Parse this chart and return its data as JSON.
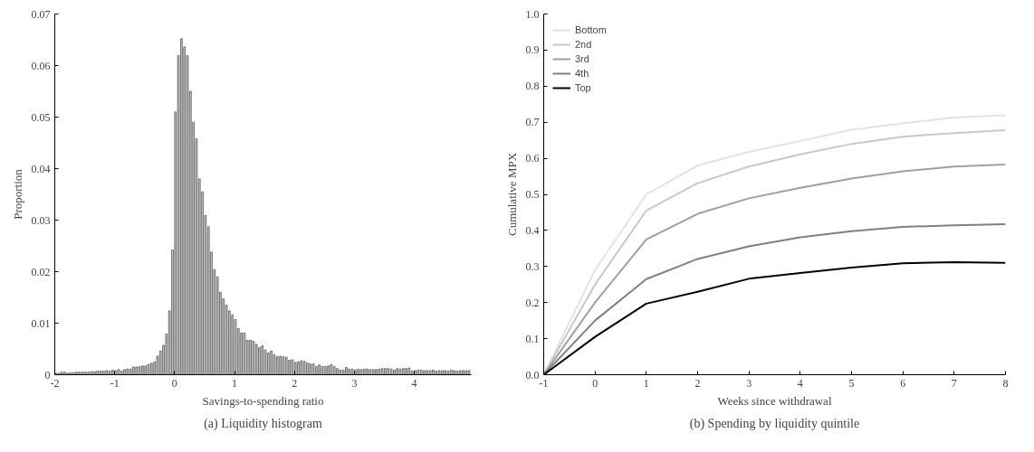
{
  "chart_data": [
    {
      "type": "histogram",
      "title": "(a) Liquidity histogram",
      "xlabel": "Savings-to-spending ratio",
      "ylabel": "Proportion",
      "color": "#555555",
      "grid": false,
      "xlim": [
        -2,
        4.95
      ],
      "xticks": [
        -2,
        -1,
        0,
        1,
        2,
        3,
        4
      ],
      "ylim": [
        0,
        0.07
      ],
      "yticks": [
        0,
        0.01,
        0.02,
        0.03,
        0.04,
        0.05,
        0.06,
        0.07
      ],
      "bins": [
        -2,
        -1.95,
        -1.9,
        -1.85,
        -1.8,
        -1.75,
        -1.7,
        -1.65,
        -1.6,
        -1.55,
        -1.5,
        -1.45,
        -1.4,
        -1.35,
        -1.3,
        -1.25,
        -1.2,
        -1.15,
        -1.1,
        -1.05,
        -1,
        -0.95,
        -0.9,
        -0.85,
        -0.8,
        -0.75,
        -0.7,
        -0.65,
        -0.6,
        -0.55,
        -0.5,
        -0.45,
        -0.4,
        -0.35,
        -0.3,
        -0.25,
        -0.2,
        -0.15,
        -0.1,
        -0.05,
        0,
        0.05,
        0.1,
        0.15,
        0.2,
        0.25,
        0.3,
        0.35,
        0.4,
        0.45,
        0.5,
        0.55,
        0.6,
        0.65,
        0.7,
        0.75,
        0.8,
        0.85,
        0.9,
        0.95,
        1,
        1.05,
        1.1,
        1.15,
        1.2,
        1.25,
        1.3,
        1.35,
        1.4,
        1.45,
        1.5,
        1.55,
        1.6,
        1.65,
        1.7,
        1.75,
        1.8,
        1.85,
        1.9,
        1.95,
        2,
        2.05,
        2.1,
        2.15,
        2.2,
        2.25,
        2.3,
        2.35,
        2.4,
        2.45,
        2.5,
        2.55,
        2.6,
        2.65,
        2.7,
        2.75,
        2.8,
        2.85,
        2.9,
        2.95,
        3,
        3.05,
        3.1,
        3.15,
        3.2,
        3.25,
        3.3,
        3.35,
        3.4,
        3.45,
        3.5,
        3.55,
        3.6,
        3.65,
        3.7,
        3.75,
        3.8,
        3.85,
        3.9,
        3.95,
        4,
        4.05,
        4.1,
        4.15,
        4.2,
        4.25,
        4.3,
        4.35,
        4.4,
        4.45,
        4.5,
        4.55,
        4.6,
        4.65,
        4.7,
        4.75,
        4.8,
        4.85,
        4.9,
        4.95
      ],
      "values": [
        0.0003,
        0.0003,
        0.0005,
        0.0005,
        0.0003,
        0.0004,
        0.0004,
        0.0005,
        0.0005,
        0.0005,
        0.0005,
        0.0005,
        0.0006,
        0.0006,
        0.0007,
        0.0007,
        0.0007,
        0.0008,
        0.0007,
        0.0009,
        0.0008,
        0.001,
        0.0007,
        0.001,
        0.0011,
        0.0011,
        0.0015,
        0.0015,
        0.0016,
        0.0017,
        0.0017,
        0.002,
        0.0022,
        0.0025,
        0.0036,
        0.0046,
        0.0057,
        0.0079,
        0.0124,
        0.0242,
        0.051,
        0.0619,
        0.0652,
        0.0636,
        0.0619,
        0.055,
        0.049,
        0.0458,
        0.038,
        0.0355,
        0.0309,
        0.0287,
        0.0238,
        0.0204,
        0.019,
        0.016,
        0.0147,
        0.0135,
        0.0124,
        0.0116,
        0.0107,
        0.009,
        0.0081,
        0.0081,
        0.0067,
        0.0067,
        0.0065,
        0.0059,
        0.0053,
        0.0056,
        0.0048,
        0.0042,
        0.0046,
        0.0039,
        0.0035,
        0.0036,
        0.0035,
        0.0034,
        0.0028,
        0.0029,
        0.0024,
        0.0025,
        0.0027,
        0.0026,
        0.0023,
        0.0021,
        0.0021,
        0.0016,
        0.0019,
        0.0016,
        0.0016,
        0.0017,
        0.002,
        0.0016,
        0.0012,
        0.0009,
        0.0009,
        0.0014,
        0.0011,
        0.0011,
        0.0009,
        0.0011,
        0.001,
        0.0011,
        0.0011,
        0.001,
        0.001,
        0.001,
        0.0011,
        0.0012,
        0.0012,
        0.0012,
        0.0011,
        0.0009,
        0.0012,
        0.0011,
        0.0012,
        0.0012,
        0.0013,
        0.0007,
        0.0008,
        0.0009,
        0.0009,
        0.0008,
        0.0008,
        0.0008,
        0.0009,
        0.0007,
        0.0008,
        0.0008,
        0.0008,
        0.0007,
        0.0009,
        0.0008,
        0.0007,
        0.0008,
        0.0008,
        0.0008,
        0.0008
      ]
    },
    {
      "type": "line",
      "title": "(b) Spending by liquidity quintile",
      "xlabel": "Weeks since withdrawal",
      "ylabel": "Cumulative MPX",
      "grid": false,
      "legend": "top left",
      "marker": "none",
      "x": [
        -1,
        0,
        1,
        2,
        3,
        4,
        5,
        6,
        7,
        8
      ],
      "xlim": [
        -1,
        8
      ],
      "xticks": [
        -1,
        0,
        1,
        2,
        3,
        4,
        5,
        6,
        7,
        8
      ],
      "ylim": [
        0,
        1
      ],
      "yticks": [
        {
          "value": 0,
          "label": "0.0"
        },
        0.1,
        0.2,
        0.3,
        0.4,
        0.5,
        0.6,
        0.7,
        0.8,
        0.9,
        {
          "value": 1,
          "label": "1.0"
        }
      ],
      "series": [
        {
          "name": "Bottom",
          "color": "#e3e3e3",
          "values": [
            0,
            0.29,
            0.5,
            0.58,
            0.618,
            0.648,
            0.679,
            0.697,
            0.713,
            0.719
          ]
        },
        {
          "name": "2nd",
          "color": "#c8c8c8",
          "values": [
            0,
            0.25,
            0.455,
            0.531,
            0.577,
            0.611,
            0.64,
            0.66,
            0.67,
            0.678
          ]
        },
        {
          "name": "3rd",
          "color": "#a0a0a0",
          "values": [
            0,
            0.2,
            0.375,
            0.446,
            0.489,
            0.518,
            0.544,
            0.564,
            0.577,
            0.583
          ]
        },
        {
          "name": "4th",
          "color": "#808080",
          "values": [
            0,
            0.15,
            0.265,
            0.321,
            0.356,
            0.381,
            0.398,
            0.41,
            0.414,
            0.417
          ]
        },
        {
          "name": "Top",
          "color": "#000000",
          "values": [
            0,
            0.105,
            0.197,
            0.23,
            0.266,
            0.282,
            0.297,
            0.309,
            0.312,
            0.31
          ]
        }
      ]
    }
  ]
}
